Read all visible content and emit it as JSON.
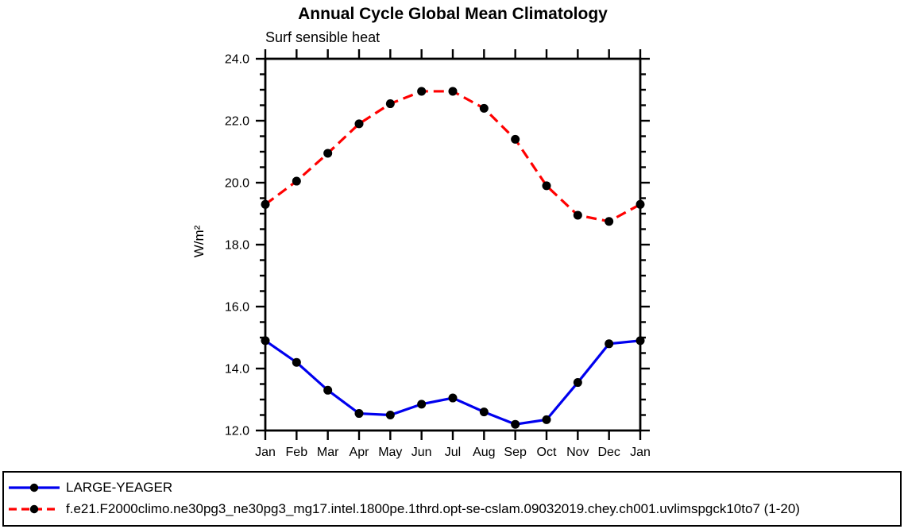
{
  "chart_data": {
    "type": "line",
    "title": "Annual Cycle Global Mean Climatology",
    "subtitle": "Surf sensible heat",
    "ylabel": "W/m²",
    "xlabel": "",
    "categories": [
      "Jan",
      "Feb",
      "Mar",
      "Apr",
      "May",
      "Jun",
      "Jul",
      "Aug",
      "Sep",
      "Oct",
      "Nov",
      "Dec",
      "Jan"
    ],
    "series": [
      {
        "name": "LARGE-YEAGER",
        "color": "#0000EE",
        "line_style": "solid",
        "values": [
          14.9,
          14.2,
          13.3,
          12.55,
          12.5,
          12.85,
          13.05,
          12.6,
          12.2,
          12.35,
          13.55,
          14.8,
          14.9
        ]
      },
      {
        "name": "f.e21.F2000climo.ne30pg3_ne30pg3_mg17.intel.1800pe.1thrd.opt-se-cslam.09032019.chey.ch001.uvlimspgck10to7 (1-20)",
        "color": "#FF0000",
        "line_style": "dashed",
        "values": [
          19.3,
          20.05,
          20.95,
          21.9,
          22.55,
          22.95,
          22.95,
          22.4,
          21.4,
          19.9,
          18.95,
          18.75,
          19.3
        ]
      }
    ],
    "marker": "filled-circle",
    "marker_color": "#000000",
    "ylim": [
      12.0,
      24.0
    ],
    "ytick_step": 2,
    "yminor_step": 0.5,
    "ytick_labels": [
      "12.0",
      "14.0",
      "16.0",
      "18.0",
      "20.0",
      "22.0",
      "24.0"
    ],
    "grid": false,
    "axis_color": "#000000",
    "legend_position": "bottom-box"
  }
}
